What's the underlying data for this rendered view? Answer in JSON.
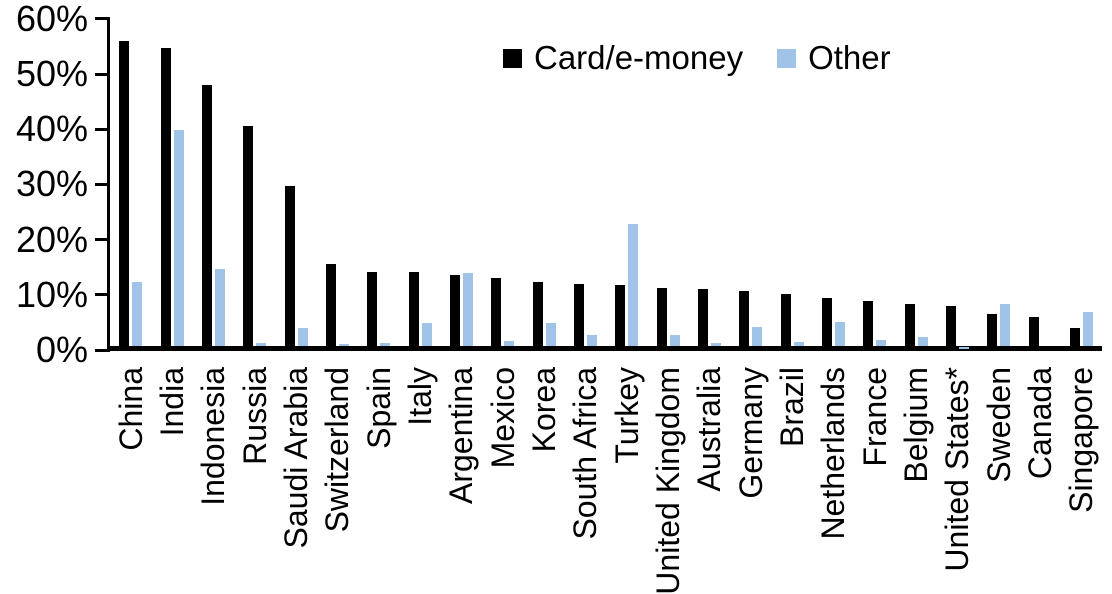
{
  "chart_data": {
    "type": "bar",
    "title": "",
    "xlabel": "",
    "ylabel": "",
    "ylim": [
      0,
      60
    ],
    "y_tick_labels": [
      "0%",
      "10%",
      "20%",
      "30%",
      "40%",
      "50%",
      "60%"
    ],
    "grid": false,
    "legend_position": "top-center",
    "categories": [
      "China",
      "India",
      "Indonesia",
      "Russia",
      "Saudi Arabia",
      "Switzerland",
      "Spain",
      "Italy",
      "Argentina",
      "Mexico",
      "Korea",
      "South Africa",
      "Turkey",
      "United Kingdom",
      "Australia",
      "Germany",
      "Brazil",
      "Netherlands",
      "France",
      "Belgium",
      "United States*",
      "Sweden",
      "Canada",
      "Singapore"
    ],
    "series": [
      {
        "name": "Card/e-money",
        "color": "#000000",
        "values": [
          56.0,
          54.8,
          48.0,
          40.5,
          29.8,
          15.6,
          14.2,
          14.1,
          13.5,
          13.1,
          12.3,
          11.9,
          11.7,
          11.2,
          11.0,
          10.7,
          10.1,
          9.4,
          8.8,
          8.3,
          8.0,
          6.6,
          6.0,
          3.9
        ]
      },
      {
        "name": "Other",
        "color": "#A0C4E8",
        "values": [
          12.4,
          39.8,
          14.6,
          1.2,
          4.0,
          1.0,
          1.3,
          4.9,
          14.0,
          1.6,
          4.9,
          2.8,
          22.8,
          2.7,
          1.3,
          4.2,
          1.5,
          5.1,
          1.9,
          2.4,
          0.5,
          8.3,
          0.0,
          6.8
        ]
      }
    ]
  }
}
